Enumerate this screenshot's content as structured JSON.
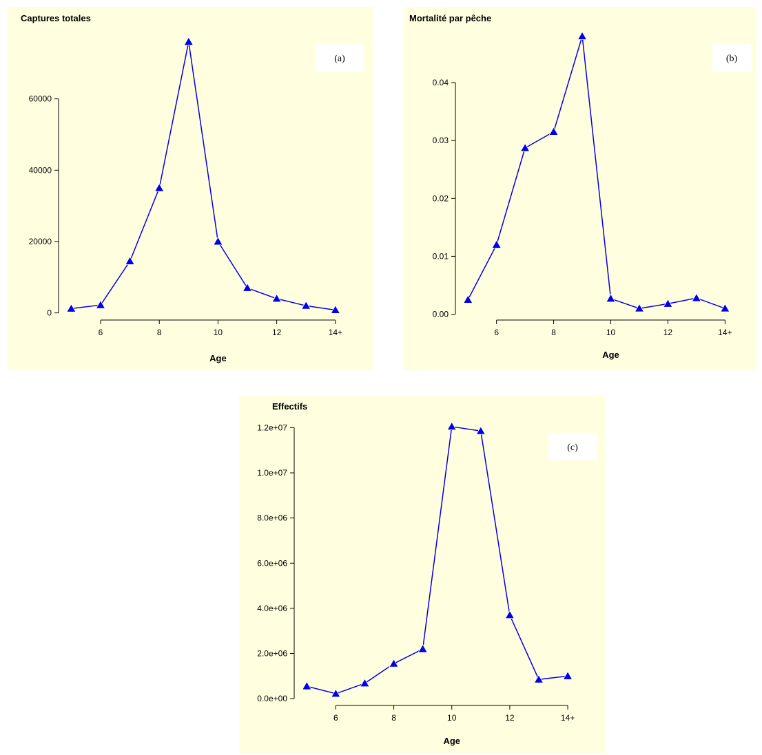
{
  "chart_data": [
    {
      "id": "a",
      "type": "line",
      "title": "Captures totales",
      "xlabel": "Age",
      "ylabel": "",
      "tag": "(a)",
      "xticks": [
        "6",
        "8",
        "10",
        "12",
        "14+"
      ],
      "yticks": [
        "0",
        "20000",
        "40000",
        "60000"
      ],
      "x": [
        5,
        6,
        7,
        8,
        9,
        10,
        11,
        12,
        13,
        14
      ],
      "values": [
        1200,
        2200,
        14500,
        35000,
        76000,
        20000,
        7000,
        4000,
        2000,
        800
      ],
      "ylim": [
        -2000,
        80000
      ],
      "xlim": [
        4.85,
        14.45
      ],
      "color": "#0000e6",
      "background": "#ffffe0"
    },
    {
      "id": "b",
      "type": "line",
      "title": "Mortalité par pêche",
      "xlabel": "Age",
      "ylabel": "",
      "tag": "(b)",
      "xticks": [
        "6",
        "8",
        "10",
        "12",
        "14+"
      ],
      "yticks": [
        "0.00",
        "0.01",
        "0.02",
        "0.03",
        "0.04"
      ],
      "x": [
        5,
        6,
        7,
        8,
        9,
        10,
        11,
        12,
        13,
        14
      ],
      "values": [
        0.0025,
        0.012,
        0.0287,
        0.0315,
        0.048,
        0.0027,
        0.001,
        0.0018,
        0.0028,
        0.001
      ],
      "ylim": [
        -0.001,
        0.0495
      ],
      "xlim": [
        4.85,
        14.45
      ],
      "color": "#0000e6",
      "background": "#ffffe0"
    },
    {
      "id": "c",
      "type": "line",
      "title": "Effectifs",
      "xlabel": "Age",
      "ylabel": "",
      "tag": "(c)",
      "xticks": [
        "6",
        "8",
        "10",
        "12",
        "14+"
      ],
      "yticks": [
        "0.0e+00",
        "2.0e+06",
        "4.0e+06",
        "6.0e+06",
        "8.0e+06",
        "1.0e+07",
        "1.2e+07"
      ],
      "x": [
        5,
        6,
        7,
        8,
        9,
        10,
        11,
        12,
        13,
        14
      ],
      "values": [
        550000,
        220000,
        680000,
        1550000,
        2200000,
        12050000,
        11850000,
        3700000,
        850000,
        1000000
      ],
      "ylim": [
        -300000,
        12500000
      ],
      "xlim": [
        4.85,
        14.45
      ],
      "color": "#0000e6",
      "background": "#ffffe0"
    }
  ]
}
